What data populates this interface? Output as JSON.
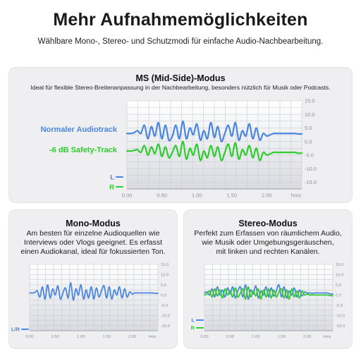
{
  "header": {
    "title": "Mehr Aufnahmemöglichkeiten",
    "subtitle": "Wählbare Mono-, Stereo- und Schutzmodi für einfache Audio-Nachbearbeitung."
  },
  "colors": {
    "blue": "#4a86e0",
    "green": "#2ecc2e",
    "card_bg": "#efeff1",
    "grid": "#c9ccd3",
    "chart_bg_top": "#ffffff",
    "chart_bg_bottom": "#d9dbe0"
  },
  "ms": {
    "title": "MS (Mid-Side)-Modus",
    "desc": "Ideal für flexible Stereo-Breitenanpassung in der Nachbearbeitung, besonders nützlich für Musik oder Podcasts.",
    "series_label_main": "Normaler Audiotrack",
    "series_label_safety": "-6 dB Safety-Track",
    "legend_l": "L",
    "legend_r": "R"
  },
  "mono": {
    "title": "Mono-Modus",
    "desc_lines": [
      "Am besten für einzelne Audioquellen wie",
      "Interviews oder Vlogs geeignet. Es erfasst",
      "einen Audiokanal, ideal für fokussierten Ton."
    ],
    "legend": "L/R"
  },
  "stereo": {
    "title": "Stereo-Modus",
    "desc_lines": [
      "Perfekt zum Erfassen von räumlichem Audio,",
      "wie Musik oder Umgebungsgeräuschen,",
      "mit linken und rechten Kanälen."
    ],
    "legend_l": "L",
    "legend_r": "R"
  },
  "chart_data": [
    {
      "type": "line",
      "name": "ms",
      "x_ticks": [
        "0.00",
        "0.50",
        "1.00",
        "1.50",
        "2.00"
      ],
      "x_unit": "hms",
      "y_ticks": [
        "15.0",
        "10.0",
        "5.0",
        "0.0",
        "-5.0",
        "-10.0",
        "-15.0"
      ],
      "xlim": [
        0,
        2.5
      ],
      "ylim": [
        -17.5,
        15
      ],
      "series": [
        {
          "name": "Normaler Audiotrack",
          "color": "#4a86e0",
          "x": [
            0,
            0.05,
            0.1,
            0.15,
            0.2,
            0.25,
            0.3,
            0.35,
            0.4,
            0.45,
            0.5,
            0.55,
            0.6,
            0.65,
            0.7,
            0.75,
            0.8,
            0.85,
            0.9,
            0.95,
            1.0,
            1.05,
            1.1,
            1.15,
            1.2,
            1.25,
            1.3,
            1.35,
            1.4,
            1.45,
            1.5,
            1.55,
            1.6,
            1.65,
            1.7,
            1.75,
            1.8,
            1.85,
            1.9,
            1.95,
            2.0,
            2.05,
            2.1,
            2.15,
            2.2,
            2.25,
            2.3,
            2.35,
            2.4,
            2.45,
            2.5
          ],
          "y": [
            3,
            3,
            3.2,
            4,
            3,
            6,
            1,
            5.5,
            2,
            7,
            1,
            6,
            0.5,
            2,
            6,
            1,
            7.5,
            1,
            5,
            2.5,
            6.5,
            0.5,
            4,
            1,
            7,
            1.5,
            5.5,
            0,
            3,
            6,
            2,
            7,
            0.5,
            4,
            2,
            6.5,
            1,
            5,
            0.5,
            3,
            2,
            2.5,
            3,
            3,
            3,
            3,
            3,
            3,
            3,
            2.8,
            2.8
          ]
        },
        {
          "name": "-6 dB Safety-Track",
          "color": "#2ecc2e",
          "x": [
            0,
            0.05,
            0.1,
            0.15,
            0.2,
            0.25,
            0.3,
            0.35,
            0.4,
            0.45,
            0.5,
            0.55,
            0.6,
            0.65,
            0.7,
            0.75,
            0.8,
            0.85,
            0.9,
            0.95,
            1.0,
            1.05,
            1.1,
            1.15,
            1.2,
            1.25,
            1.3,
            1.35,
            1.4,
            1.45,
            1.5,
            1.55,
            1.6,
            1.65,
            1.7,
            1.75,
            1.8,
            1.85,
            1.9,
            1.95,
            2.0,
            2.05,
            2.1,
            2.15,
            2.2,
            2.25,
            2.3,
            2.35,
            2.4,
            2.45,
            2.5
          ],
          "y": [
            -3.5,
            -3.5,
            -3.3,
            -3,
            -4,
            -1.5,
            -5,
            -2,
            -4.5,
            -1,
            -5.5,
            -2,
            -6,
            -4,
            -1.5,
            -5.5,
            0,
            -6.5,
            -2.5,
            -5,
            -1,
            -7,
            -3.5,
            -6,
            -1.5,
            -5.5,
            -2,
            -7,
            -4,
            -1,
            -5.5,
            -0.5,
            -6.5,
            -3,
            -5,
            -1.5,
            -6,
            -2.5,
            -7,
            -4,
            -5,
            -4.5,
            -4,
            -4,
            -4,
            -4,
            -4,
            -4,
            -4,
            -4.3,
            -4.3
          ]
        }
      ]
    },
    {
      "type": "line",
      "name": "mono",
      "x_ticks": [
        "0.00",
        "0.50",
        "1.00",
        "1.50",
        "2.00"
      ],
      "x_unit": "hms",
      "y_ticks": [
        "15.0",
        "10.0",
        "5.0",
        "0.0",
        "-5.0",
        "-10.0",
        "-15.0"
      ],
      "xlim": [
        0,
        2.5
      ],
      "ylim": [
        -17.5,
        15
      ],
      "series": [
        {
          "name": "L/R",
          "color": "#4a86e0",
          "x": [
            0,
            0.05,
            0.1,
            0.15,
            0.2,
            0.25,
            0.3,
            0.35,
            0.4,
            0.45,
            0.5,
            0.55,
            0.6,
            0.65,
            0.7,
            0.75,
            0.8,
            0.85,
            0.9,
            0.95,
            1.0,
            1.05,
            1.1,
            1.15,
            1.2,
            1.25,
            1.3,
            1.35,
            1.4,
            1.45,
            1.5,
            1.55,
            1.6,
            1.65,
            1.7,
            1.75,
            1.8,
            1.85,
            1.9,
            1.95,
            2.0,
            2.05,
            2.1,
            2.15,
            2.2,
            2.25,
            2.3,
            2.35,
            2.4,
            2.45,
            2.5
          ],
          "y": [
            1,
            1,
            1.2,
            2,
            -1,
            4,
            -2,
            5,
            -1.5,
            3,
            0,
            4.5,
            -2,
            1,
            3.5,
            -1.5,
            6,
            -2.5,
            3,
            0,
            5,
            -2,
            2.5,
            -1.5,
            4,
            -2,
            3.5,
            -1,
            2,
            4.5,
            -1.5,
            4,
            -2,
            2.5,
            0,
            4,
            -1.5,
            3,
            -1,
            1.5,
            0.5,
            1,
            1,
            1,
            1,
            1,
            1,
            1,
            1,
            0.8,
            0.8
          ]
        }
      ]
    },
    {
      "type": "line",
      "name": "stereo",
      "x_ticks": [
        "0.00",
        "0.50",
        "1.00",
        "1.50",
        "2.00"
      ],
      "x_unit": "hms",
      "y_ticks": [
        "15.0",
        "10.0",
        "5.0",
        "0.0",
        "-5.0",
        "-10.0",
        "-15.0"
      ],
      "xlim": [
        0,
        2.5
      ],
      "ylim": [
        -17.5,
        15
      ],
      "series": [
        {
          "name": "L",
          "color": "#4a86e0",
          "x": [
            0,
            0.05,
            0.1,
            0.15,
            0.2,
            0.25,
            0.3,
            0.35,
            0.4,
            0.45,
            0.5,
            0.55,
            0.6,
            0.65,
            0.7,
            0.75,
            0.8,
            0.85,
            0.9,
            0.95,
            1.0,
            1.05,
            1.1,
            1.15,
            1.2,
            1.25,
            1.3,
            1.35,
            1.4,
            1.45,
            1.5,
            1.55,
            1.6,
            1.65,
            1.7,
            1.75,
            1.8,
            1.85,
            1.9,
            1.95,
            2.0,
            2.05,
            2.1,
            2.15,
            2.2,
            2.25,
            2.3,
            2.35,
            2.4,
            2.45,
            2.5
          ],
          "y": [
            1,
            1.5,
            0,
            3,
            -1,
            4,
            0,
            2.5,
            -1,
            3.5,
            0.5,
            4,
            -1.5,
            2,
            4,
            -1,
            5,
            -2,
            2.5,
            0.5,
            4.5,
            -1.5,
            2,
            0,
            4,
            -1,
            3.5,
            -0.5,
            2,
            5,
            -1,
            4,
            -1.5,
            2,
            0,
            3.5,
            -1,
            2.5,
            -0.5,
            1.5,
            1,
            1,
            0.8,
            1,
            1,
            1,
            1,
            1,
            1,
            0.5,
            0.5
          ]
        },
        {
          "name": "R",
          "color": "#2ecc2e",
          "x": [
            0,
            0.05,
            0.1,
            0.15,
            0.2,
            0.25,
            0.3,
            0.35,
            0.4,
            0.45,
            0.5,
            0.55,
            0.6,
            0.65,
            0.7,
            0.75,
            0.8,
            0.85,
            0.9,
            0.95,
            1.0,
            1.05,
            1.1,
            1.15,
            1.2,
            1.25,
            1.3,
            1.35,
            1.4,
            1.45,
            1.5,
            1.55,
            1.6,
            1.65,
            1.7,
            1.75,
            1.8,
            1.85,
            1.9,
            1.95,
            2.0,
            2.05,
            2.1,
            2.15,
            2.2,
            2.25,
            2.3,
            2.35,
            2.4,
            2.45,
            2.5
          ],
          "y": [
            0,
            0.5,
            2,
            -1,
            3,
            -0.5,
            2.5,
            -1.5,
            3,
            0,
            2,
            -1,
            3.5,
            -1,
            1,
            3,
            -2,
            4,
            -1,
            2,
            -0.5,
            3,
            -2,
            2.5,
            -1,
            3,
            -1.5,
            2.5,
            -1,
            1.5,
            3,
            -1.5,
            2.5,
            -2,
            3,
            -1,
            2,
            -1.5,
            2,
            0,
            0.5,
            0,
            0,
            0,
            0,
            0,
            0,
            0,
            0,
            -0.3,
            -0.3
          ]
        }
      ]
    }
  ]
}
